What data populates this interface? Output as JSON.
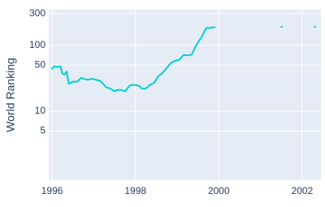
{
  "chart_data": {
    "type": "line",
    "y_label": "World Ranking",
    "x": [
      1996.0,
      1996.05,
      1996.1,
      1996.2,
      1996.25,
      1996.3,
      1996.35,
      1996.4,
      1996.45,
      1996.5,
      1996.6,
      1996.7,
      1996.75,
      1996.85,
      1996.95,
      1997.05,
      1997.15,
      1997.25,
      1997.3,
      1997.4,
      1997.5,
      1997.55,
      1997.65,
      1997.75,
      1997.85,
      1997.9,
      1998.0,
      1998.1,
      1998.15,
      1998.25,
      1998.35,
      1998.45,
      1998.55,
      1998.65,
      1998.75,
      1998.85,
      1998.95,
      1999.05,
      1999.15,
      1999.25,
      1999.35,
      1999.45,
      1999.5,
      1999.58,
      1999.65,
      1999.7,
      1999.8,
      1999.9,
      2000.5,
      2001.5,
      2002.0,
      2002.3
    ],
    "series": [
      {
        "name": "World Ranking",
        "color": "#00cfd0",
        "values": [
          44,
          48,
          47,
          48,
          37,
          36,
          40,
          26,
          27,
          28,
          28,
          32,
          31,
          30,
          31,
          30,
          29,
          25,
          23,
          22,
          20,
          21,
          21,
          20,
          24,
          25,
          25,
          24,
          22,
          22,
          25,
          27,
          34,
          38,
          45,
          54,
          58,
          60,
          71,
          70,
          72,
          98,
          110,
          130,
          160,
          182,
          183,
          188,
          null,
          190,
          null,
          190
        ]
      }
    ],
    "xlim": [
      1995.92,
      2002.45
    ],
    "xticks": [
      1996,
      1998,
      2000,
      2002
    ],
    "ylim": [
      0.9,
      345
    ],
    "yticks": [
      5,
      10,
      50,
      100,
      300
    ],
    "log_y": true,
    "grid": true
  }
}
